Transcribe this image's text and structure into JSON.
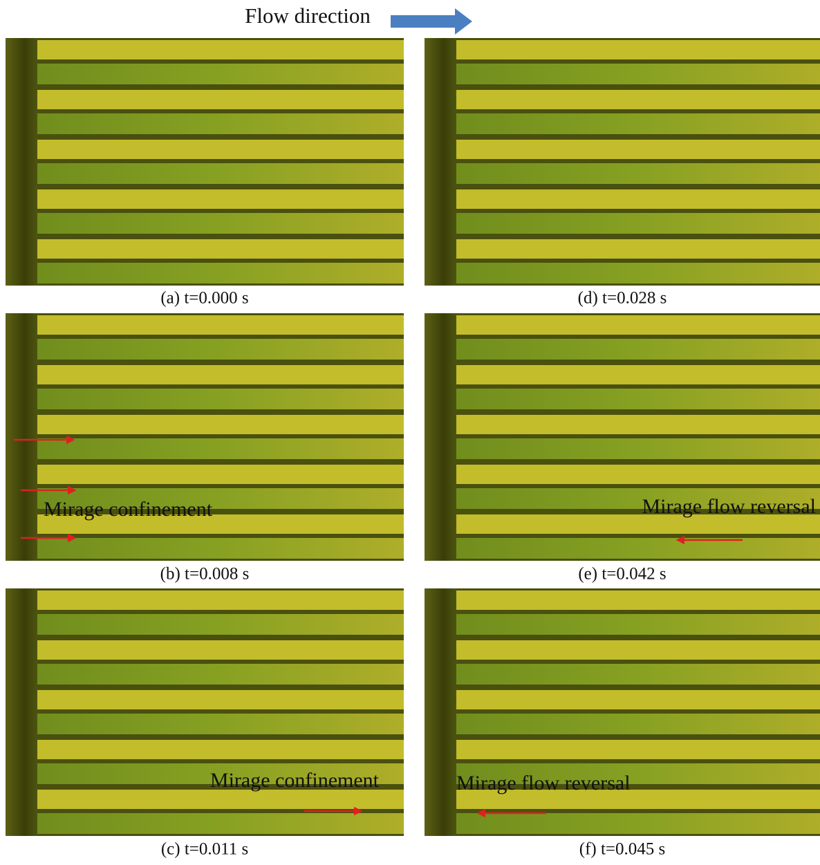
{
  "header": {
    "title": "Flow direction"
  },
  "panels": [
    {
      "caption": "(a)  t=0.000 s"
    },
    {
      "caption": "(b)  t=0.008 s",
      "annotation": "Mirage confinement"
    },
    {
      "caption": "(c)  t=0.011 s",
      "annotation": "Mirage confinement"
    },
    {
      "caption": "(d)  t=0.028 s"
    },
    {
      "caption": "(e)  t=0.042 s",
      "annotation": "Mirage flow reversal"
    },
    {
      "caption": "(f)  t=0.045 s",
      "annotation": "Mirage flow reversal"
    }
  ]
}
